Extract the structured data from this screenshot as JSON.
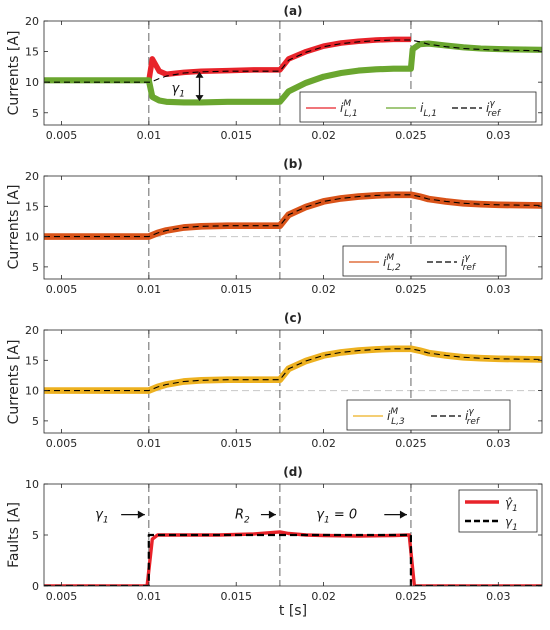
{
  "chart_data": [
    {
      "type": "line",
      "title": "(a)",
      "xlabel": "",
      "ylabel": "Currents [A]",
      "xlim": [
        0.004,
        0.0325
      ],
      "ylim": [
        3,
        20
      ],
      "xticks": [
        "0.005",
        "0.01",
        "0.015",
        "0.02",
        "0.025",
        "0.03"
      ],
      "yticks": [
        "5",
        "10",
        "15",
        "20"
      ],
      "event_lines": [
        0.01,
        0.0175,
        0.025
      ],
      "legend": {
        "position": "bottom-right",
        "entries": [
          {
            "label": "i",
            "sup": "M",
            "sub": "L,1",
            "color": "#e8232a",
            "style": "solid"
          },
          {
            "label": "i",
            "sup": "",
            "sub": "L,1",
            "color": "#6aa62f",
            "style": "solid"
          },
          {
            "label": "i",
            "sup": "γ",
            "sub": "ref",
            "color": "#000000",
            "style": "dashed"
          }
        ]
      },
      "annotation": {
        "text": "γ",
        "sub": "1"
      },
      "series": [
        {
          "color": "#e8232a",
          "band": 0.9,
          "x": [
            0.01,
            0.0102,
            0.0106,
            0.011,
            0.012,
            0.013,
            0.0145,
            0.016,
            0.0175,
            0.018,
            0.019,
            0.02,
            0.021,
            0.022,
            0.023,
            0.024,
            0.025
          ],
          "y": [
            10.2,
            13.8,
            11.8,
            11.3,
            11.6,
            11.8,
            11.9,
            12.0,
            12.0,
            13.8,
            15.0,
            15.9,
            16.4,
            16.7,
            16.9,
            17.0,
            17.0
          ]
        },
        {
          "color": "#6aa62f",
          "band": 1.0,
          "x": [
            0.004,
            0.01,
            0.0102,
            0.0106,
            0.011,
            0.012,
            0.013,
            0.0145,
            0.016,
            0.0175,
            0.018,
            0.019,
            0.02,
            0.021,
            0.022,
            0.023,
            0.024,
            0.025,
            0.0251,
            0.0255,
            0.026,
            0.027,
            0.028,
            0.029,
            0.03,
            0.031,
            0.0325
          ],
          "y": [
            10.3,
            10.3,
            7.6,
            7.0,
            6.8,
            6.7,
            6.7,
            6.8,
            6.8,
            6.8,
            8.5,
            9.9,
            10.9,
            11.5,
            11.9,
            12.1,
            12.2,
            12.2,
            15.4,
            16.2,
            16.3,
            16.0,
            15.7,
            15.5,
            15.4,
            15.35,
            15.3
          ]
        },
        {
          "color": "#000000",
          "dashed": true,
          "x": [
            0.004,
            0.0101,
            0.0106,
            0.011,
            0.012,
            0.013,
            0.0145,
            0.016,
            0.0175,
            0.018,
            0.019,
            0.02,
            0.021,
            0.022,
            0.023,
            0.024,
            0.025,
            0.0255,
            0.026,
            0.027,
            0.028,
            0.029,
            0.03,
            0.031,
            0.0325
          ],
          "y": [
            10.0,
            10.0,
            10.6,
            11.0,
            11.5,
            11.7,
            11.8,
            11.8,
            11.8,
            13.6,
            14.9,
            15.8,
            16.3,
            16.6,
            16.8,
            16.9,
            16.9,
            16.6,
            16.2,
            15.8,
            15.5,
            15.35,
            15.25,
            15.2,
            15.15
          ]
        }
      ]
    },
    {
      "type": "line",
      "title": "(b)",
      "xlabel": "",
      "ylabel": "Currents [A]",
      "xlim": [
        0.004,
        0.0325
      ],
      "ylim": [
        3,
        20
      ],
      "xticks": [
        "0.005",
        "0.01",
        "0.015",
        "0.02",
        "0.025",
        "0.03"
      ],
      "yticks": [
        "5",
        "10",
        "15",
        "20"
      ],
      "event_lines": [
        0.01,
        0.0175,
        0.025
      ],
      "hline": 10,
      "legend": {
        "position": "bottom-right",
        "entries": [
          {
            "label": "i",
            "sup": "M",
            "sub": "L,2",
            "color": "#d95319",
            "style": "solid"
          },
          {
            "label": "i",
            "sup": "γ",
            "sub": "ref",
            "color": "#000000",
            "style": "dashed"
          }
        ]
      },
      "series": [
        {
          "color": "#d95319",
          "band": 1.1,
          "x": [
            0.004,
            0.01,
            0.0105,
            0.011,
            0.012,
            0.013,
            0.0145,
            0.016,
            0.0175,
            0.018,
            0.019,
            0.02,
            0.021,
            0.022,
            0.023,
            0.024,
            0.025,
            0.0255,
            0.026,
            0.027,
            0.028,
            0.029,
            0.03,
            0.031,
            0.0325
          ],
          "y": [
            10.0,
            10.0,
            10.6,
            11.0,
            11.5,
            11.7,
            11.8,
            11.8,
            11.8,
            13.6,
            14.9,
            15.8,
            16.3,
            16.6,
            16.8,
            16.9,
            16.9,
            16.6,
            16.2,
            15.8,
            15.5,
            15.35,
            15.25,
            15.2,
            15.15
          ]
        },
        {
          "color": "#000000",
          "dashed": true,
          "x": [
            0.004,
            0.01,
            0.0105,
            0.011,
            0.012,
            0.013,
            0.0145,
            0.016,
            0.0175,
            0.018,
            0.019,
            0.02,
            0.021,
            0.022,
            0.023,
            0.024,
            0.025,
            0.0255,
            0.026,
            0.027,
            0.028,
            0.029,
            0.03,
            0.031,
            0.0325
          ],
          "y": [
            10.0,
            10.0,
            10.6,
            11.0,
            11.5,
            11.7,
            11.8,
            11.8,
            11.8,
            13.6,
            14.9,
            15.8,
            16.3,
            16.6,
            16.8,
            16.9,
            16.9,
            16.6,
            16.2,
            15.8,
            15.5,
            15.35,
            15.25,
            15.2,
            15.15
          ]
        }
      ]
    },
    {
      "type": "line",
      "title": "(c)",
      "xlabel": "",
      "ylabel": "Currents [A]",
      "xlim": [
        0.004,
        0.0325
      ],
      "ylim": [
        3,
        20
      ],
      "xticks": [
        "0.005",
        "0.01",
        "0.015",
        "0.02",
        "0.025",
        "0.03"
      ],
      "yticks": [
        "5",
        "10",
        "15",
        "20"
      ],
      "event_lines": [
        0.01,
        0.0175,
        0.025
      ],
      "hline": 10,
      "legend": {
        "position": "bottom-right",
        "entries": [
          {
            "label": "i",
            "sup": "M",
            "sub": "L,3",
            "color": "#edb120",
            "style": "solid"
          },
          {
            "label": "i",
            "sup": "γ",
            "sub": "ref",
            "color": "#000000",
            "style": "dashed"
          }
        ]
      },
      "series": [
        {
          "color": "#edb120",
          "band": 1.1,
          "x": [
            0.004,
            0.01,
            0.0105,
            0.011,
            0.012,
            0.013,
            0.0145,
            0.016,
            0.0175,
            0.018,
            0.019,
            0.02,
            0.021,
            0.022,
            0.023,
            0.024,
            0.025,
            0.0255,
            0.026,
            0.027,
            0.028,
            0.029,
            0.03,
            0.031,
            0.0325
          ],
          "y": [
            10.0,
            10.0,
            10.6,
            11.0,
            11.5,
            11.7,
            11.8,
            11.8,
            11.8,
            13.6,
            14.9,
            15.8,
            16.3,
            16.6,
            16.8,
            16.9,
            16.9,
            16.6,
            16.2,
            15.8,
            15.5,
            15.35,
            15.25,
            15.2,
            15.15
          ]
        },
        {
          "color": "#000000",
          "dashed": true,
          "x": [
            0.004,
            0.01,
            0.0105,
            0.011,
            0.012,
            0.013,
            0.0145,
            0.016,
            0.0175,
            0.018,
            0.019,
            0.02,
            0.021,
            0.022,
            0.023,
            0.024,
            0.025,
            0.0255,
            0.026,
            0.027,
            0.028,
            0.029,
            0.03,
            0.031,
            0.0325
          ],
          "y": [
            10.0,
            10.0,
            10.6,
            11.0,
            11.5,
            11.7,
            11.8,
            11.8,
            11.8,
            13.6,
            14.9,
            15.8,
            16.3,
            16.6,
            16.8,
            16.9,
            16.9,
            16.6,
            16.2,
            15.8,
            15.5,
            15.35,
            15.25,
            15.2,
            15.15
          ]
        }
      ]
    },
    {
      "type": "line",
      "title": "(d)",
      "xlabel": "t [s]",
      "ylabel": "Faults [A]",
      "xlim": [
        0.004,
        0.0325
      ],
      "ylim": [
        0,
        10
      ],
      "xticks": [
        "0.005",
        "0.01",
        "0.015",
        "0.02",
        "0.025",
        "0.03"
      ],
      "yticks": [
        "0",
        "5",
        "10"
      ],
      "event_lines": [
        0.01,
        0.0175,
        0.025
      ],
      "legend": {
        "position": "top-right",
        "entries": [
          {
            "label": "γ̂",
            "sup": "",
            "sub": "1",
            "color": "#e8232a",
            "style": "solid"
          },
          {
            "label": "γ",
            "sup": "",
            "sub": "1",
            "color": "#000000",
            "style": "dashed"
          }
        ]
      },
      "annotations": [
        {
          "label": "γ",
          "sub": "1",
          "x": 0.0075,
          "y": 7.0
        },
        {
          "label": "R",
          "sub": "2",
          "x": 0.0155,
          "y": 7.0
        },
        {
          "label": "γ",
          "sub": "1",
          "suffix": " = 0",
          "x": 0.0213,
          "y": 7.0
        }
      ],
      "series": [
        {
          "color": "#e8232a",
          "width": 3.4,
          "x": [
            0.004,
            0.0099,
            0.0102,
            0.0105,
            0.012,
            0.014,
            0.016,
            0.0175,
            0.018,
            0.019,
            0.02,
            0.022,
            0.024,
            0.0249,
            0.0252,
            0.0325
          ],
          "y": [
            0,
            0,
            4.6,
            5.0,
            5.0,
            5.0,
            5.1,
            5.3,
            5.15,
            5.0,
            4.95,
            4.9,
            4.95,
            5.0,
            0,
            0
          ]
        },
        {
          "color": "#000000",
          "dashed": true,
          "width": 2.2,
          "x": [
            0.004,
            0.01,
            0.01,
            0.0175,
            0.0175,
            0.025,
            0.025,
            0.0325
          ],
          "y": [
            0,
            0,
            5,
            5,
            5,
            5,
            0,
            0
          ]
        }
      ]
    }
  ]
}
